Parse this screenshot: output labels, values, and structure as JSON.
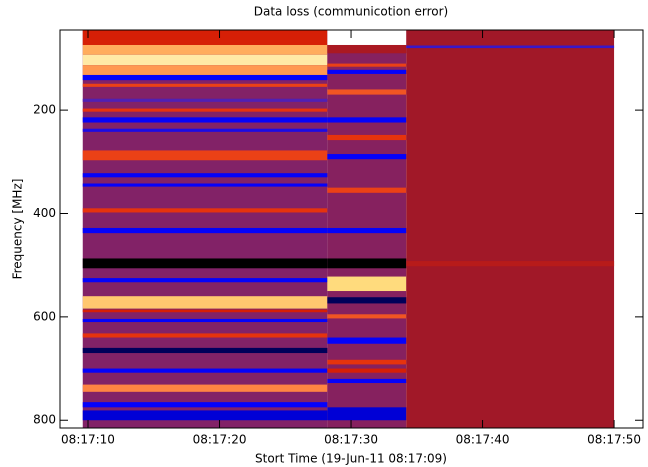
{
  "chart_data": {
    "type": "spectrogram",
    "title": "Data loss (communicotion error)",
    "xlabel": "Stort Time (19-Jun-11 08:17:09)",
    "ylabel": "Frequency [MHz]",
    "xlim": [
      7.87,
      52.2
    ],
    "ylim": [
      45,
      815
    ],
    "y_reversed": true,
    "xticks": [
      {
        "value": 10,
        "label": "08:17:10"
      },
      {
        "value": 20,
        "label": "08:17:20"
      },
      {
        "value": 30,
        "label": "08:17:30"
      },
      {
        "value": 40,
        "label": "08:17:40"
      },
      {
        "value": 50,
        "label": "08:17:50"
      }
    ],
    "yticks": [
      200,
      400,
      600,
      800
    ],
    "colormap": [
      "#000000",
      "#0000ff",
      "#6a2a9a",
      "#a01828",
      "#e02000",
      "#ff8040",
      "#ffe080",
      "#ffffff"
    ],
    "segments": [
      {
        "t0": 9.6,
        "t1": 28.2,
        "background": 0.35,
        "bands": [
          [
            45,
            74,
            0.55
          ],
          [
            74,
            93,
            0.78
          ],
          [
            93,
            113,
            0.9
          ],
          [
            113,
            132,
            0.75
          ],
          [
            132,
            142,
            0.15
          ],
          [
            149,
            155,
            0.62
          ],
          [
            178,
            184,
            0.25
          ],
          [
            197,
            203,
            0.6
          ],
          [
            214,
            224,
            0.15
          ],
          [
            236,
            242,
            0.18
          ],
          [
            278,
            297,
            0.62
          ],
          [
            322,
            330,
            0.15
          ],
          [
            342,
            348,
            0.15
          ],
          [
            390,
            398,
            0.6
          ],
          [
            428,
            438,
            0.15
          ],
          [
            487,
            506,
            0.0
          ],
          [
            525,
            533,
            0.15
          ],
          [
            560,
            584,
            0.82
          ],
          [
            586,
            591,
            0.55
          ],
          [
            604,
            610,
            0.15
          ],
          [
            632,
            640,
            0.6
          ],
          [
            660,
            670,
            0.05
          ],
          [
            700,
            708,
            0.15
          ],
          [
            731,
            745,
            0.72
          ],
          [
            765,
            775,
            0.15
          ],
          [
            781,
            800,
            0.12
          ]
        ]
      },
      {
        "t0": 28.2,
        "t1": 34.2,
        "background": 0.36,
        "bands": [
          [
            45,
            74,
            1.0
          ],
          [
            74,
            90,
            0.45
          ],
          [
            110,
            116,
            0.62
          ],
          [
            122,
            130,
            0.15
          ],
          [
            160,
            170,
            0.65
          ],
          [
            214,
            224,
            0.15
          ],
          [
            248,
            258,
            0.6
          ],
          [
            285,
            295,
            0.15
          ],
          [
            350,
            360,
            0.62
          ],
          [
            428,
            438,
            0.15
          ],
          [
            487,
            506,
            0.0
          ],
          [
            522,
            550,
            0.85
          ],
          [
            562,
            574,
            0.05
          ],
          [
            595,
            603,
            0.65
          ],
          [
            640,
            652,
            0.15
          ],
          [
            683,
            692,
            0.6
          ],
          [
            700,
            708,
            0.55
          ],
          [
            720,
            728,
            0.15
          ],
          [
            775,
            800,
            0.12
          ]
        ]
      },
      {
        "t0": 34.2,
        "t1": 50.0,
        "background": 0.43,
        "bands": [
          [
            75,
            80,
            0.22
          ],
          [
            492,
            502,
            0.48
          ]
        ]
      }
    ]
  }
}
